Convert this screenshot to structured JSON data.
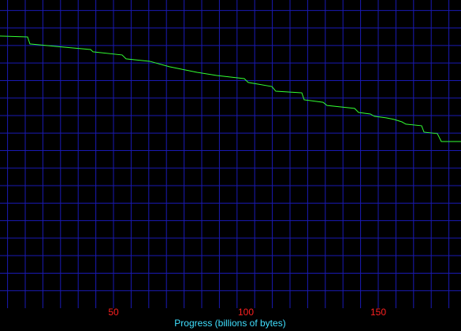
{
  "chart_data": {
    "type": "line",
    "x_label": "Progress (billions of bytes)",
    "x": [
      7.14,
      17.56,
      18.45,
      30.95,
      41.37,
      42.26,
      53.27,
      54.76,
      63.69,
      71.13,
      81.55,
      88.99,
      99.4,
      100.89,
      109.82,
      111.31,
      121.13,
      122.02,
      129.17,
      130.65,
      141.07,
      142.56,
      147.02,
      148.51,
      152.98,
      155.95,
      158.93,
      160.42,
      166.37,
      167.26,
      172.32,
      173.81,
      181.25
    ],
    "series": [
      {
        "color": "#33ff33",
        "values": [
          15.54,
          15.49,
          15.09,
          14.91,
          14.77,
          14.64,
          14.46,
          14.24,
          14.1,
          13.79,
          13.47,
          13.29,
          13.11,
          12.89,
          12.66,
          12.39,
          12.3,
          11.9,
          11.76,
          11.58,
          11.41,
          11.18,
          11.09,
          10.96,
          10.87,
          10.78,
          10.64,
          10.51,
          10.42,
          10.06,
          9.97,
          9.52,
          9.52
        ]
      }
    ],
    "xlim": [
      7.14,
      181.25
    ],
    "xticks": [
      50,
      100,
      150
    ],
    "x_grid": [
      10,
      16.67,
      23.33,
      30,
      36.67,
      43.33,
      50,
      56.67,
      63.33,
      70,
      76.67,
      83.33,
      90,
      96.67,
      103.33,
      110,
      116.67,
      123.33,
      130,
      136.67,
      143.33,
      150,
      156.67,
      163.33,
      170,
      176.67
    ],
    "ylim": [
      0,
      17.6
    ],
    "y_grid": [
      1,
      2,
      3,
      4,
      5,
      6,
      7,
      8,
      9,
      10,
      11,
      12,
      13,
      14,
      15,
      16,
      17
    ],
    "grid_color": "#1a1ab4",
    "tick_color": "#ff2020",
    "label_color": "#40e0ff"
  }
}
